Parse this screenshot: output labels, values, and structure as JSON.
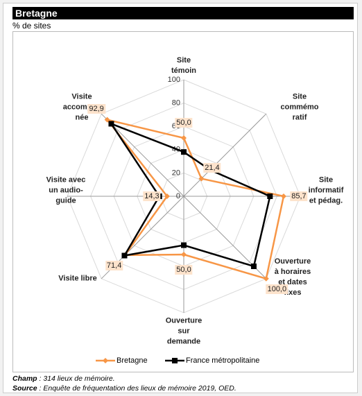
{
  "header": {
    "title": "Bretagne",
    "subtitle": "% de sites"
  },
  "chart_data": {
    "type": "radar",
    "categories": [
      "Site\ntémoin",
      "Site\ncommémo\nratif",
      "Site\ninformatif\net pédag.",
      "Ouverture\nà horaires\net dates\nfixes",
      "Ouverture\nsur\ndemande",
      "Visite libre",
      "Visite avec\nun audio-\nguide",
      "Visite\naccompag\nnée"
    ],
    "rlim": [
      0,
      100
    ],
    "rticks": [
      0,
      20,
      40,
      60,
      80,
      100
    ],
    "grid": true,
    "series": [
      {
        "name": "Bretagne",
        "color": "#f79646",
        "marker": "diamond",
        "values": [
          50.0,
          21.4,
          85.7,
          100.0,
          50.0,
          71.4,
          14.3,
          92.9
        ],
        "value_labels": [
          "50,0",
          "21,4",
          "85,7",
          "100,0",
          "50,0",
          "71,4",
          "14,3",
          "92,9"
        ]
      },
      {
        "name": "France métropolitaine",
        "color": "#000000",
        "marker": "square",
        "values": [
          38,
          32,
          74,
          85,
          42,
          72,
          21,
          88
        ]
      }
    ]
  },
  "notes": [
    {
      "label": "Champ",
      "text": " : 314 lieux de mémoire."
    },
    {
      "label": "Source",
      "text": " :  Enquête de fréquentation des lieux de mémoire 2019, OED."
    }
  ]
}
